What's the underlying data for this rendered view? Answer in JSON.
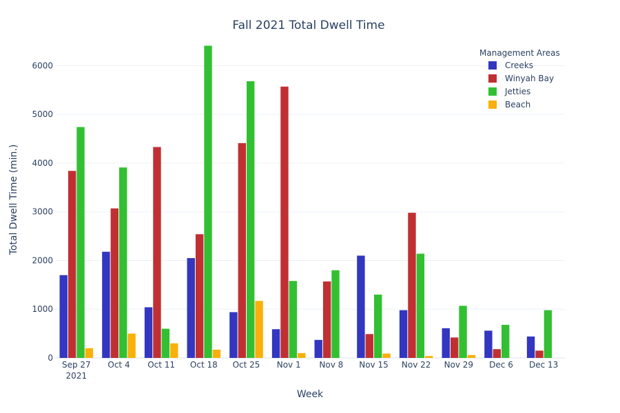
{
  "chart_data": {
    "type": "bar",
    "title": "Fall 2021 Total Dwell Time",
    "xlabel": "Week",
    "ylabel": "Total Dwell Time (min.)",
    "ylim": [
      0,
      6500
    ],
    "yticks": [
      0,
      1000,
      2000,
      3000,
      4000,
      5000,
      6000
    ],
    "grid": true,
    "legend_title": "Management Areas",
    "legend_position": "top-right",
    "categories": [
      [
        "Sep 27",
        "2021"
      ],
      [
        "Oct 4"
      ],
      [
        "Oct 11"
      ],
      [
        "Oct 18"
      ],
      [
        "Oct 25"
      ],
      [
        "Nov 1"
      ],
      [
        "Nov 8"
      ],
      [
        "Nov 15"
      ],
      [
        "Nov 22"
      ],
      [
        "Nov 29"
      ],
      [
        "Dec 6"
      ],
      [
        "Dec 13"
      ]
    ],
    "series": [
      {
        "name": "Creeks",
        "color": "#3236c0",
        "values": [
          1700,
          2180,
          1040,
          2050,
          940,
          590,
          370,
          2100,
          980,
          610,
          560,
          440
        ]
      },
      {
        "name": "Winyah Bay",
        "color": "#c03033",
        "values": [
          3840,
          3070,
          4330,
          2540,
          4410,
          5570,
          1570,
          490,
          2980,
          420,
          180,
          150
        ]
      },
      {
        "name": "Jetties",
        "color": "#32c032",
        "values": [
          4740,
          3910,
          600,
          6410,
          5680,
          1580,
          1800,
          1300,
          2140,
          1070,
          680,
          980
        ]
      },
      {
        "name": "Beach",
        "color": "#fab00a",
        "values": [
          200,
          500,
          300,
          170,
          1170,
          100,
          0,
          90,
          40,
          60,
          0,
          0
        ]
      }
    ]
  }
}
